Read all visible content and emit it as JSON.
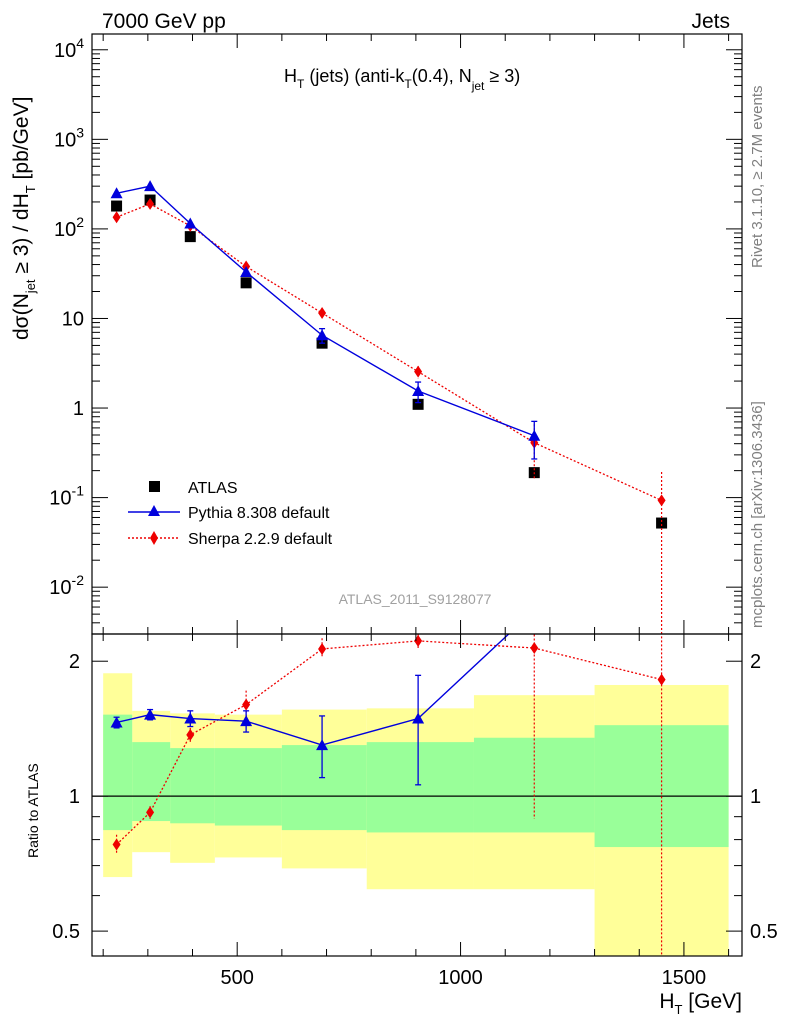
{
  "header": {
    "left": "7000 GeV pp",
    "right": "Jets"
  },
  "side_labels": {
    "rivet": "Rivet 3.1.10, ≥ 2.7M events",
    "mcplots": "mcplots.cern.ch [arXiv:1306.3436]"
  },
  "watermark": "ATLAS_2011_S9128077",
  "plot_title": {
    "h": "H",
    "t1": "T",
    "mid": " (jets) (anti-k",
    "t2": "T",
    "end1": "(0.4), N",
    "sub": "jet",
    "end2": " ≥ 3)"
  },
  "ylabel": {
    "a": "dσ(N",
    "sub": "jet",
    "b": " ≥ 3) / dH",
    "t": "T",
    "c": " [pb/GeV]"
  },
  "xlabel": {
    "h": "H",
    "t": "T",
    "unit": " [GeV]"
  },
  "ratio_label": "Ratio to ATLAS",
  "legend": [
    "ATLAS",
    "Pythia 8.308 default",
    "Sherpa 2.2.9 default"
  ],
  "colors": {
    "atlas": "#000000",
    "pythia": "#0000dd",
    "sherpa": "#ee0000",
    "band_inner": "#99ff99",
    "band_outer": "#ffff99"
  },
  "chart_data": {
    "type": "scatter",
    "x_range": [
      175,
      1630
    ],
    "main": {
      "y_scale": "log",
      "y_range": [
        0.003,
        15000
      ],
      "y_ticks": [
        {
          "v": 0.01,
          "base": "10",
          "exp": "-2"
        },
        {
          "v": 0.1,
          "base": "10",
          "exp": "-1"
        },
        {
          "v": 1,
          "base": "1",
          "exp": ""
        },
        {
          "v": 10,
          "base": "10",
          "exp": ""
        },
        {
          "v": 100,
          "base": "10",
          "exp": "2"
        },
        {
          "v": 1000,
          "base": "10",
          "exp": "3"
        },
        {
          "v": 10000,
          "base": "10",
          "exp": "4"
        }
      ]
    },
    "ratio": {
      "y_scale": "log",
      "y_range": [
        0.44,
        2.3
      ],
      "y_ticks": [
        {
          "v": 0.5,
          "label": "0.5"
        },
        {
          "v": 1,
          "label": "1"
        },
        {
          "v": 2,
          "label": "2"
        }
      ]
    },
    "x_ticks": [
      {
        "v": 500,
        "label": "500"
      },
      {
        "v": 1000,
        "label": "1000"
      },
      {
        "v": 1500,
        "label": "1500"
      }
    ],
    "bins": [
      [
        200,
        265
      ],
      [
        265,
        350
      ],
      [
        350,
        450
      ],
      [
        450,
        600
      ],
      [
        600,
        790
      ],
      [
        790,
        1030
      ],
      [
        1030,
        1300
      ],
      [
        1300,
        1600
      ]
    ],
    "atlas": {
      "x": [
        230,
        305,
        395,
        520,
        690,
        905,
        1165,
        1450
      ],
      "y": [
        180,
        210,
        82,
        25,
        5.3,
        1.1,
        0.19,
        0.052
      ]
    },
    "pythia": {
      "x": [
        230,
        305,
        395,
        520,
        690,
        905,
        1165
      ],
      "y": [
        250,
        300,
        115,
        33,
        6.5,
        1.55,
        0.49
      ],
      "err": [
        null,
        null,
        null,
        null,
        1.2,
        0.4,
        0.22
      ]
    },
    "sherpa": {
      "x": [
        230,
        305,
        395,
        520,
        690,
        905,
        1165,
        1450
      ],
      "y": [
        135,
        190,
        108,
        38,
        11.5,
        2.55,
        0.41,
        0.093
      ],
      "err": [
        null,
        null,
        null,
        null,
        null,
        0.4,
        0.25,
        0.1
      ]
    },
    "ratio_bands": {
      "inner": [
        [
          0.84,
          1.52
        ],
        [
          0.88,
          1.32
        ],
        [
          0.87,
          1.28
        ],
        [
          0.86,
          1.28
        ],
        [
          0.84,
          1.3
        ],
        [
          0.83,
          1.32
        ],
        [
          0.83,
          1.35
        ],
        [
          0.77,
          1.44
        ]
      ],
      "outer": [
        [
          0.66,
          1.88
        ],
        [
          0.75,
          1.55
        ],
        [
          0.71,
          1.53
        ],
        [
          0.73,
          1.52
        ],
        [
          0.69,
          1.56
        ],
        [
          0.62,
          1.57
        ],
        [
          0.62,
          1.68
        ],
        [
          0.43,
          1.77
        ]
      ]
    },
    "ratio_pythia": {
      "y": [
        1.46,
        1.52,
        1.49,
        1.47,
        1.3,
        1.49,
        2.6
      ],
      "err_lo": [
        0.04,
        0.04,
        0.06,
        0.08,
        0.2,
        0.43,
        null
      ],
      "err_hi": [
        0.04,
        0.04,
        0.06,
        0.08,
        0.21,
        0.37,
        null
      ]
    },
    "ratio_sherpa": {
      "y": [
        0.78,
        0.92,
        1.37,
        1.6,
        2.13,
        2.22,
        2.14,
        1.82
      ],
      "err_lo": [
        0.04,
        0.03,
        0.05,
        0.1,
        0.1,
        0.08,
        1.25,
        1.4
      ],
      "err_hi": [
        0.04,
        0.03,
        0.05,
        0.12,
        0.12,
        0.08,
        0.25,
        0.5
      ]
    }
  }
}
